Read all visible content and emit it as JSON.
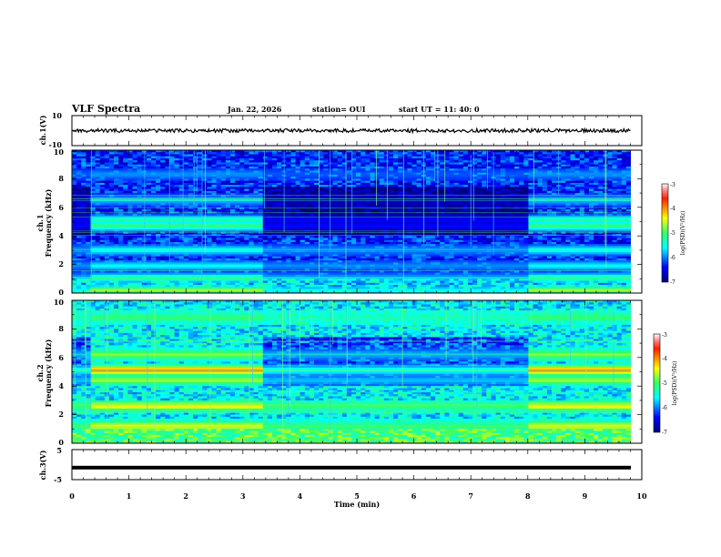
{
  "header": {
    "title": "VLF Spectra",
    "date": "Jan. 22, 2026",
    "station": "station= OUI",
    "start": "start  UT =   11: 40: 0"
  },
  "chart_data": [
    {
      "type": "line",
      "name": "ch1-voltage",
      "ylabel": "ch.1(V)",
      "ylim": [
        -10,
        10
      ],
      "ytick_labels": [
        "10",
        "-10"
      ],
      "xlim": [
        0,
        10
      ],
      "trace_mean": 0
    },
    {
      "type": "heatmap",
      "name": "ch1-spectrogram",
      "ylabel_line1": "ch.1",
      "ylabel_line2": "Frequency (kHz)",
      "ylim": [
        0,
        10
      ],
      "xlim": [
        0,
        10
      ],
      "ytick_labels": [
        "0",
        "2",
        "4",
        "6",
        "8",
        "10"
      ],
      "colorbar": {
        "label": "log(PSD)(V²/Hz)",
        "range": [
          -7,
          -3
        ],
        "tick_labels": [
          "-3",
          "-4",
          "-5",
          "-6",
          "-7"
        ]
      },
      "base_level": -6.3,
      "segments": [
        0.3,
        3.35,
        8.0,
        9.8
      ],
      "bands": [
        {
          "f": 0.2,
          "level": -4.6
        },
        {
          "f": 1.05,
          "level": -5.1
        },
        {
          "f": 1.9,
          "level": -5.5
        },
        {
          "f": 3.0,
          "level": -5.4
        },
        {
          "f": 4.7,
          "level": -5.0
        },
        {
          "f": 5.1,
          "level": -5.2
        },
        {
          "f": 6.5,
          "level": -5.7
        },
        {
          "f": 8.3,
          "level": -5.9
        }
      ]
    },
    {
      "type": "heatmap",
      "name": "ch2-spectrogram",
      "ylabel_line1": "ch.2",
      "ylabel_line2": "Frequency (kHz)",
      "ylim": [
        0,
        10
      ],
      "xlim": [
        0,
        10
      ],
      "ytick_labels": [
        "0",
        "2",
        "4",
        "6",
        "8",
        "10"
      ],
      "colorbar": {
        "label": "log(PSD)(V²/Hz)",
        "range": [
          -7,
          -3
        ],
        "tick_labels": [
          "-3",
          "-4",
          "-5",
          "-6",
          "-7"
        ]
      },
      "base_level": -5.6,
      "segments": [
        0.3,
        3.35,
        8.0,
        9.8
      ],
      "bands": [
        {
          "f": 1.2,
          "level": -4.3
        },
        {
          "f": 2.6,
          "level": -4.2
        },
        {
          "f": 4.4,
          "level": -4.6
        },
        {
          "f": 5.1,
          "level": -3.8
        },
        {
          "f": 6.2,
          "level": -4.7
        },
        {
          "f": 8.8,
          "level": -5.0
        }
      ]
    },
    {
      "type": "line",
      "name": "ch3-voltage",
      "ylabel": "ch.3(V)",
      "ylim": [
        -5,
        5
      ],
      "ytick_labels": [
        "5",
        "-5"
      ],
      "xlim": [
        0,
        10
      ],
      "trace_mean": -1,
      "xlabel": "Time  (min)",
      "xtick_labels": [
        "0",
        "1",
        "2",
        "3",
        "4",
        "5",
        "6",
        "7",
        "8",
        "9",
        "10"
      ]
    }
  ]
}
